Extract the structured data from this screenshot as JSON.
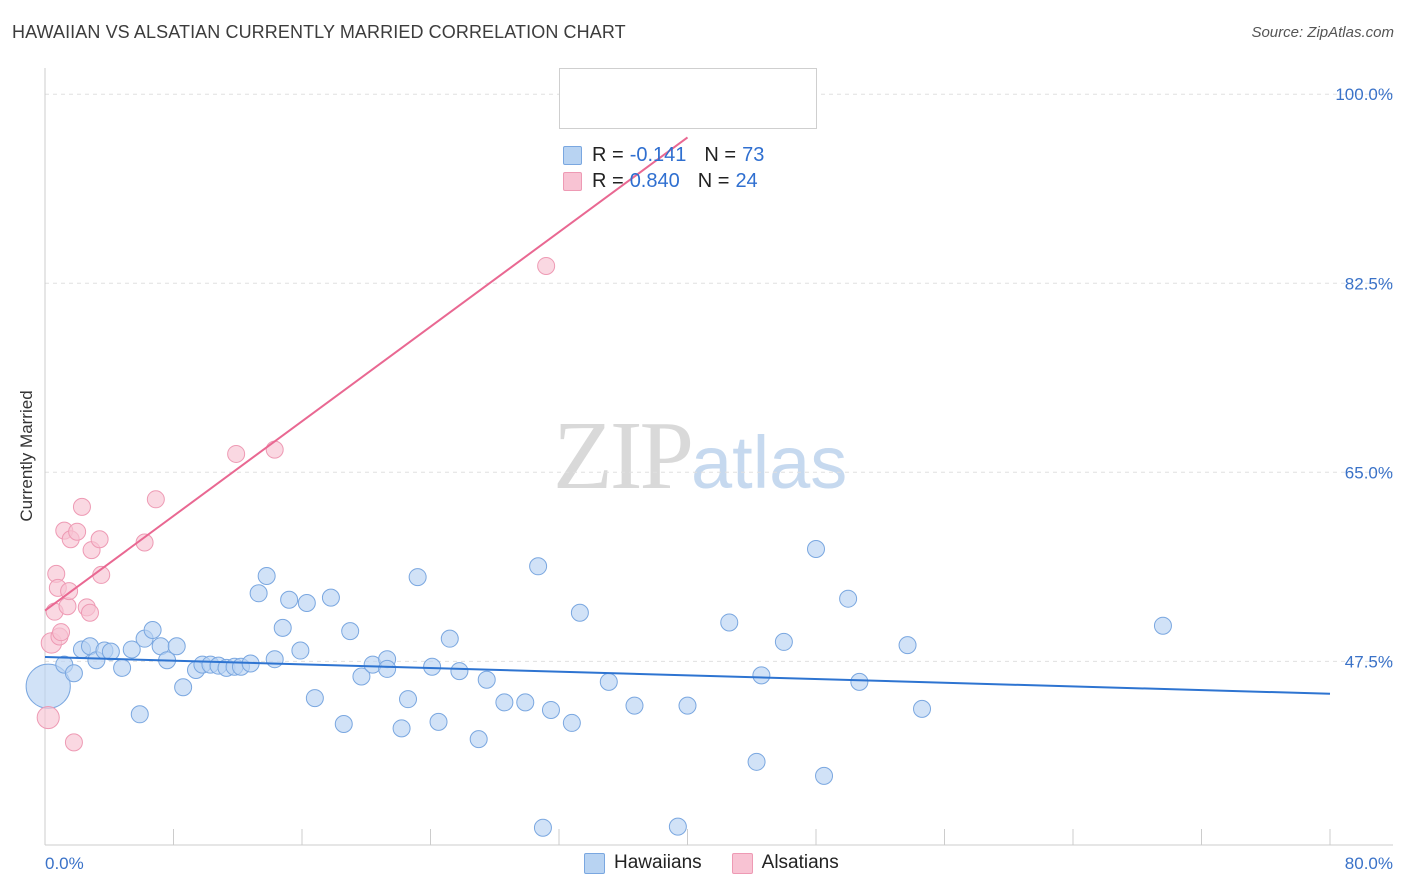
{
  "title": "HAWAIIAN VS ALSATIAN CURRENTLY MARRIED CORRELATION CHART",
  "source": "Source: ZipAtlas.com",
  "watermark": {
    "zip": "ZIP",
    "atlas": "atlas"
  },
  "legend": {
    "rows": [
      {
        "r_label": "R =",
        "r_value": "-0.141",
        "n_label": "N =",
        "n_value": "73"
      },
      {
        "r_label": "R =",
        "r_value": "0.840",
        "n_label": "N =",
        "n_value": "24"
      }
    ]
  },
  "colors": {
    "hawaiians_fill": "#b8d3f2",
    "hawaiians_stroke": "#7aa7e0",
    "hawaiians_line": "#2e74d1",
    "alsatians_fill": "#f8c3d3",
    "alsatians_stroke": "#ee9ab4",
    "alsatians_line": "#e96892",
    "tick_label": "#3a72c8",
    "grid": "#e0e0e0"
  },
  "chart_data": {
    "type": "scatter",
    "title": "HAWAIIAN VS ALSATIAN CURRENTLY MARRIED CORRELATION CHART",
    "xlabel": "",
    "ylabel": "Currently Married",
    "xlim": [
      0,
      80
    ],
    "ylim": [
      30.5,
      101.5
    ],
    "x_tick_labels": [
      "0.0%",
      "80.0%"
    ],
    "y_ticks": [
      47.5,
      65.0,
      82.5,
      100.0
    ],
    "y_tick_labels": [
      "47.5%",
      "65.0%",
      "82.5%",
      "100.0%"
    ],
    "grid": true,
    "legend_position": "bottom-center",
    "series": [
      {
        "name": "Hawaiians",
        "r": -0.141,
        "n": 73,
        "trend": {
          "x": [
            0,
            80
          ],
          "y": [
            47.9,
            44.5
          ]
        },
        "points": [
          [
            0.2,
            45.2,
            2.6
          ],
          [
            1.2,
            47.2,
            1
          ],
          [
            1.8,
            46.4,
            1
          ],
          [
            2.3,
            48.6,
            1
          ],
          [
            2.8,
            48.9,
            1
          ],
          [
            3.2,
            47.6,
            1
          ],
          [
            3.7,
            48.5,
            1
          ],
          [
            4.1,
            48.4,
            1
          ],
          [
            4.8,
            46.9,
            1
          ],
          [
            5.4,
            48.6,
            1
          ],
          [
            5.9,
            42.6,
            1
          ],
          [
            6.2,
            49.6,
            1
          ],
          [
            6.7,
            50.4,
            1
          ],
          [
            7.2,
            48.9,
            1
          ],
          [
            7.6,
            47.6,
            1
          ],
          [
            8.2,
            48.9,
            1
          ],
          [
            8.6,
            45.1,
            1
          ],
          [
            9.4,
            46.7,
            1
          ],
          [
            9.8,
            47.2,
            1
          ],
          [
            10.3,
            47.2,
            1
          ],
          [
            10.8,
            47.1,
            1
          ],
          [
            11.3,
            46.9,
            1
          ],
          [
            11.8,
            47.0,
            1
          ],
          [
            12.2,
            47.0,
            1
          ],
          [
            12.8,
            47.3,
            1
          ],
          [
            13.3,
            53.8,
            1
          ],
          [
            13.8,
            55.4,
            1
          ],
          [
            14.3,
            47.7,
            1
          ],
          [
            14.8,
            50.6,
            1
          ],
          [
            15.2,
            53.2,
            1
          ],
          [
            15.9,
            48.5,
            1
          ],
          [
            16.3,
            52.9,
            1
          ],
          [
            16.8,
            44.1,
            1
          ],
          [
            17.8,
            53.4,
            1
          ],
          [
            18.6,
            41.7,
            1
          ],
          [
            19.0,
            50.3,
            1
          ],
          [
            19.7,
            46.1,
            1
          ],
          [
            20.4,
            47.2,
            1
          ],
          [
            21.3,
            47.7,
            1
          ],
          [
            21.3,
            46.8,
            1
          ],
          [
            22.2,
            41.3,
            1
          ],
          [
            22.6,
            44.0,
            1
          ],
          [
            23.2,
            55.3,
            1
          ],
          [
            24.1,
            47.0,
            1
          ],
          [
            24.5,
            41.9,
            1
          ],
          [
            25.2,
            49.6,
            1
          ],
          [
            25.8,
            46.6,
            1
          ],
          [
            27.0,
            40.3,
            1
          ],
          [
            27.5,
            45.8,
            1
          ],
          [
            28.6,
            43.7,
            1
          ],
          [
            29.9,
            43.7,
            1
          ],
          [
            30.7,
            56.3,
            1
          ],
          [
            31.0,
            32.1,
            1
          ],
          [
            31.5,
            43.0,
            1
          ],
          [
            32.8,
            41.8,
            1
          ],
          [
            33.3,
            52.0,
            1
          ],
          [
            35.1,
            45.6,
            1
          ],
          [
            36.7,
            43.4,
            1
          ],
          [
            39.4,
            32.2,
            1
          ],
          [
            40.0,
            43.4,
            1
          ],
          [
            42.6,
            51.1,
            1
          ],
          [
            44.3,
            38.2,
            1
          ],
          [
            44.6,
            46.2,
            1
          ],
          [
            46.0,
            49.3,
            1
          ],
          [
            48.0,
            57.9,
            1
          ],
          [
            48.5,
            36.9,
            1
          ],
          [
            50.0,
            53.3,
            1
          ],
          [
            50.7,
            45.6,
            1
          ],
          [
            53.7,
            49.0,
            1
          ],
          [
            54.6,
            43.1,
            1
          ],
          [
            69.6,
            50.8,
            1
          ]
        ]
      },
      {
        "name": "Alsatians",
        "r": 0.84,
        "n": 24,
        "trend": {
          "x": [
            0,
            40
          ],
          "y": [
            52.2,
            96.0
          ]
        },
        "points": [
          [
            0.2,
            42.3,
            1.3
          ],
          [
            0.4,
            49.2,
            1.2
          ],
          [
            0.6,
            52.1,
            1
          ],
          [
            0.7,
            55.6,
            1
          ],
          [
            0.8,
            54.3,
            1
          ],
          [
            0.9,
            49.8,
            1
          ],
          [
            1.0,
            50.2,
            1
          ],
          [
            1.2,
            59.6,
            1
          ],
          [
            1.4,
            52.6,
            1
          ],
          [
            1.5,
            54.0,
            1
          ],
          [
            1.6,
            58.8,
            1
          ],
          [
            1.8,
            40.0,
            1
          ],
          [
            2.0,
            59.5,
            1
          ],
          [
            2.3,
            61.8,
            1
          ],
          [
            2.6,
            52.5,
            1
          ],
          [
            2.8,
            52.0,
            1
          ],
          [
            2.9,
            57.8,
            1
          ],
          [
            3.4,
            58.8,
            1
          ],
          [
            3.5,
            55.5,
            1
          ],
          [
            6.2,
            58.5,
            1
          ],
          [
            6.9,
            62.5,
            1
          ],
          [
            11.9,
            66.7,
            1
          ],
          [
            14.3,
            67.1,
            1
          ],
          [
            31.2,
            84.1,
            1
          ]
        ]
      }
    ]
  }
}
